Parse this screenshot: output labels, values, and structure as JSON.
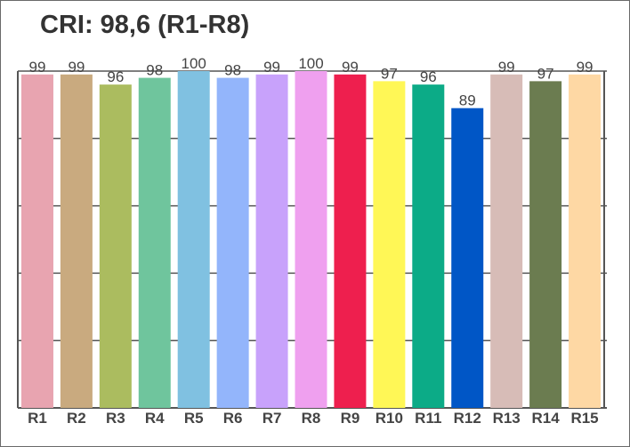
{
  "chart_data": {
    "type": "bar",
    "title": "CRI: 98,6 (R1-R8)",
    "xlabel": "",
    "ylabel": "",
    "categories": [
      "R1",
      "R2",
      "R3",
      "R4",
      "R5",
      "R6",
      "R7",
      "R8",
      "R9",
      "R10",
      "R11",
      "R12",
      "R13",
      "R14",
      "R15"
    ],
    "values": [
      99,
      99,
      96,
      98,
      100,
      98,
      99,
      100,
      99,
      97,
      96,
      89,
      99,
      97,
      99
    ],
    "colors": [
      "#e8a4b0",
      "#c9aa7f",
      "#abbc5f",
      "#6fc59d",
      "#80c1e1",
      "#93b5fb",
      "#c8a2fb",
      "#efa0ef",
      "#ee1f4e",
      "#fff756",
      "#0cab87",
      "#0056c6",
      "#d7bcb7",
      "#6b7c50",
      "#fed8a4"
    ],
    "ylim": [
      0,
      100
    ],
    "grid": true,
    "legend": "none"
  }
}
